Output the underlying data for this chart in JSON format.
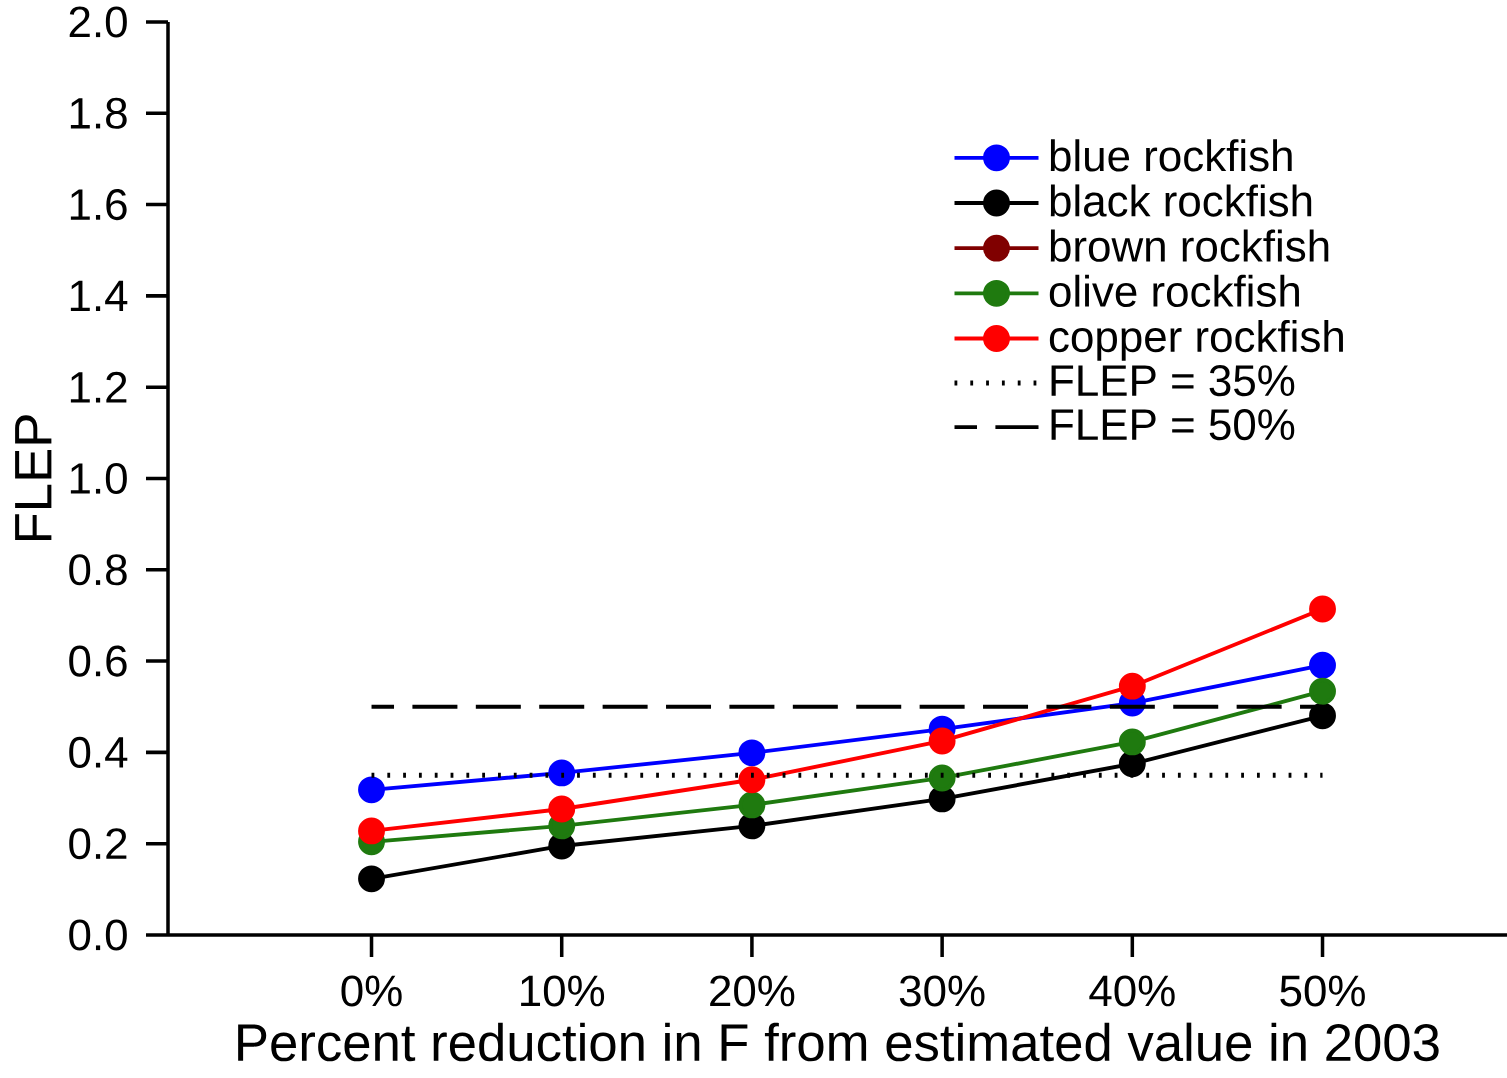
{
  "chart_data": {
    "type": "line",
    "xlabel": "Percent reduction in F from estimated value in 2003",
    "ylabel": "FLEP",
    "categories": [
      "0%",
      "10%",
      "20%",
      "30%",
      "40%",
      "50%"
    ],
    "ylim": [
      0,
      2
    ],
    "yticks": [
      {
        "value": 0,
        "label": "0.0"
      },
      {
        "value": 0.2,
        "label": "0.2"
      },
      {
        "value": 0.4,
        "label": "0.4"
      },
      {
        "value": 0.6,
        "label": "0.6"
      },
      {
        "value": 0.8,
        "label": "0.8"
      },
      {
        "value": 1,
        "label": "1.0"
      },
      {
        "value": 1.2,
        "label": "1.2"
      },
      {
        "value": 1.4,
        "label": "1.4"
      },
      {
        "value": 1.6,
        "label": "1.6"
      },
      {
        "value": 1.8,
        "label": "1.8"
      },
      {
        "value": 2,
        "label": "2.0"
      }
    ],
    "grid": false,
    "legend": "top right",
    "marker": "circle",
    "line_style": "solid",
    "series": [
      {
        "name": "blue rockfish",
        "color": "#0000ff",
        "values": [
          0.318,
          0.355,
          0.399,
          0.451,
          0.508,
          0.591
        ]
      },
      {
        "name": "black rockfish",
        "color": "#000000",
        "values": [
          0.123,
          0.195,
          0.239,
          0.298,
          0.375,
          0.48
        ]
      },
      {
        "name": "brown rockfish",
        "color": "#800000",
        "values": [
          null,
          null,
          null,
          null,
          null,
          null
        ]
      },
      {
        "name": "olive rockfish",
        "color": "#1f7a0f",
        "values": [
          0.204,
          0.239,
          0.285,
          0.344,
          0.423,
          0.534
        ]
      },
      {
        "name": "copper rockfish",
        "color": "#ff0000",
        "values": [
          0.228,
          0.276,
          0.34,
          0.425,
          0.545,
          0.714
        ]
      },
      {
        "name": "FLEP = 35%",
        "color": "#000000",
        "marker": "none",
        "line_style": "dotted",
        "values": [
          0.35,
          0.35,
          0.35,
          0.35,
          0.35,
          0.35
        ]
      },
      {
        "name": "FLEP = 50%",
        "color": "#000000",
        "marker": "none",
        "line_style": "dashed",
        "values": [
          0.5,
          0.5,
          0.5,
          0.5,
          0.5,
          0.5
        ]
      }
    ]
  }
}
